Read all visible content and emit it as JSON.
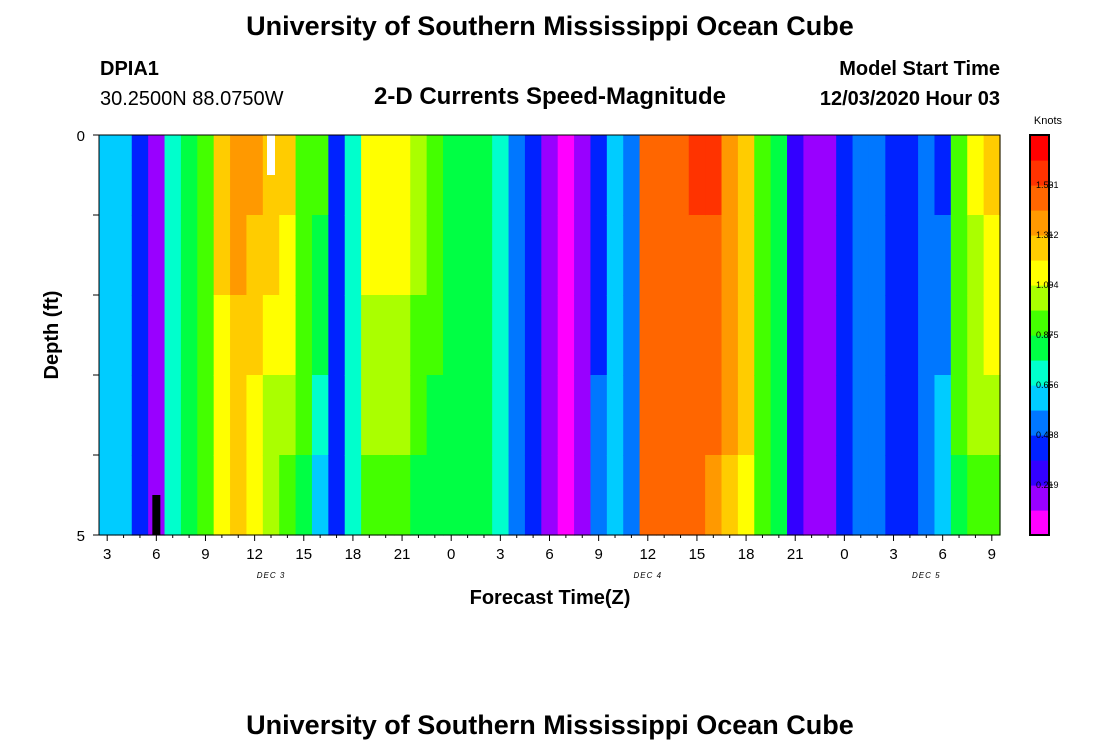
{
  "header": {
    "title": "University of Southern Mississippi Ocean Cube",
    "footer_title": "University of Southern Mississippi Ocean Cube",
    "station_id": "DPIA1",
    "station_coords": "30.2500N 88.0750W",
    "model_start_label": "Model Start Time",
    "model_start_value": "12/03/2020 Hour 03"
  },
  "colors": {
    "palette": [
      "#ff00ff",
      "#9900ff",
      "#3300ff",
      "#0022ff",
      "#0077ff",
      "#00ccff",
      "#00ffcc",
      "#00ff44",
      "#44ff00",
      "#aaff00",
      "#ffff00",
      "#ffcc00",
      "#ff9900",
      "#ff6600",
      "#ff3300",
      "#ff0000"
    ],
    "frame": "#000000",
    "current_time_marker": "#ffffff",
    "bottom_marker": "#000000"
  },
  "chart_data": {
    "type": "heatmap",
    "title": "2-D Currents Speed-Magnitude",
    "xlabel": "Forecast Time(Z)",
    "ylabel": "Depth (ft)",
    "units": "Knots",
    "x_hours": [
      3,
      4,
      5,
      6,
      7,
      8,
      9,
      10,
      11,
      12,
      13,
      14,
      15,
      16,
      17,
      18,
      19,
      20,
      21,
      22,
      23,
      24,
      25,
      26,
      27,
      28,
      29,
      30,
      31,
      32,
      33,
      34,
      35,
      36,
      37,
      38,
      39,
      40,
      41,
      42,
      43,
      44,
      45,
      46,
      47,
      48,
      49,
      50,
      51,
      52,
      53,
      54,
      55,
      56,
      57
    ],
    "x_tick_labels": [
      "3",
      "6",
      "9",
      "12",
      "15",
      "18",
      "21",
      "0",
      "3",
      "6",
      "9",
      "12",
      "15",
      "18",
      "21",
      "0",
      "3",
      "6",
      "9"
    ],
    "x_tick_hours": [
      3,
      6,
      9,
      12,
      15,
      18,
      21,
      24,
      27,
      30,
      33,
      36,
      39,
      42,
      45,
      48,
      51,
      54,
      57
    ],
    "date_labels": [
      {
        "text": "DEC 3",
        "hour": 13
      },
      {
        "text": "DEC 4",
        "hour": 36
      },
      {
        "text": "DEC 5",
        "hour": 53
      }
    ],
    "y_tick_labels": [
      "0",
      "5"
    ],
    "y_range": [
      0,
      5
    ],
    "depth_bands": 5,
    "colorbar_range": [
      0.0,
      1.75
    ],
    "colorbar_ticks": [
      1.531,
      1.312,
      1.094,
      0.875,
      0.656,
      0.438,
      0.219
    ],
    "colorbar_tick_labels": [
      "1.531",
      "1.312",
      "1.094",
      "0.875",
      "0.656",
      "0.438",
      "0.219"
    ],
    "surface_speeds": [
      0.56,
      0.6,
      0.4,
      0.15,
      0.7,
      0.87,
      0.95,
      1.25,
      1.34,
      1.34,
      1.3,
      1.25,
      0.95,
      0.9,
      0.4,
      0.68,
      1.2,
      1.2,
      1.15,
      1.07,
      0.95,
      0.85,
      0.8,
      0.87,
      0.7,
      0.5,
      0.35,
      0.15,
      0.1,
      0.15,
      0.4,
      0.6,
      0.45,
      1.5,
      1.5,
      1.5,
      1.55,
      1.55,
      1.4,
      1.3,
      0.95,
      0.85,
      0.3,
      0.15,
      0.2,
      0.4,
      0.45,
      0.5,
      0.35,
      0.35,
      0.45,
      0.4,
      0.95,
      1.1,
      1.25
    ],
    "bottom_speeds": [
      0.56,
      0.6,
      0.4,
      0.15,
      0.7,
      0.87,
      0.95,
      1.1,
      1.25,
      1.1,
      1.0,
      0.95,
      0.87,
      0.65,
      0.4,
      0.68,
      0.95,
      0.95,
      0.95,
      0.85,
      0.8,
      0.78,
      0.8,
      0.8,
      0.7,
      0.5,
      0.35,
      0.15,
      0.1,
      0.15,
      0.45,
      0.6,
      0.45,
      1.45,
      1.45,
      1.45,
      1.45,
      1.4,
      1.3,
      1.2,
      0.95,
      0.8,
      0.3,
      0.15,
      0.2,
      0.4,
      0.45,
      0.5,
      0.35,
      0.35,
      0.45,
      0.6,
      0.85,
      0.95,
      0.95
    ],
    "current_time_marker_hour": 13,
    "bottom_marker_hour": 6
  }
}
